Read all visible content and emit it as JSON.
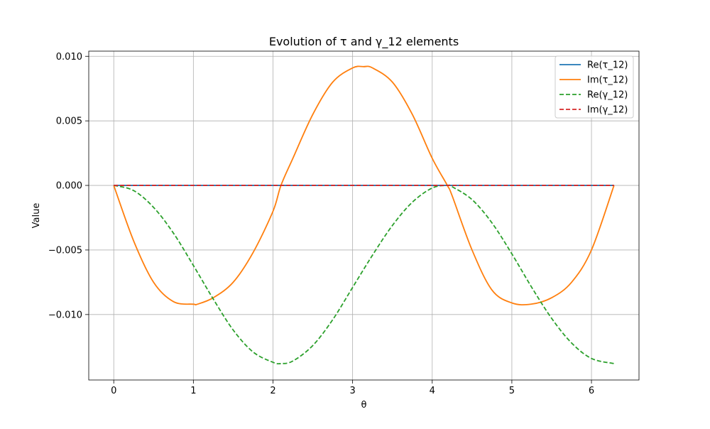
{
  "chart_data": {
    "type": "line",
    "title": "Evolution of τ and γ_12 elements",
    "xlabel": "θ",
    "ylabel": "Value",
    "xlim": [
      -0.314,
      6.597
    ],
    "ylim": [
      -0.01507,
      0.0104
    ],
    "grid": true,
    "legend_position": "top-right",
    "xticks": [
      0,
      1,
      2,
      3,
      4,
      5,
      6
    ],
    "xtick_labels": [
      "0",
      "1",
      "2",
      "3",
      "4",
      "5",
      "6"
    ],
    "yticks": [
      -0.01,
      -0.005,
      0,
      0.005,
      0.01
    ],
    "ytick_labels": [
      "−0.010",
      "−0.005",
      "0.000",
      "0.005",
      "0.010"
    ],
    "series": [
      {
        "name": "Re(τ_12)",
        "color": "#1f77b4",
        "style": "solid",
        "x": [
          0,
          6.283
        ],
        "values": [
          0,
          0
        ]
      },
      {
        "name": "Im(τ_12)",
        "color": "#ff7f0e",
        "style": "solid",
        "x": [
          0,
          0.25,
          0.5,
          0.75,
          1.0,
          1.05,
          1.25,
          1.5,
          1.75,
          2.0,
          2.1,
          2.25,
          2.5,
          2.75,
          3.0,
          3.14,
          3.25,
          3.5,
          3.75,
          4.0,
          4.19,
          4.25,
          4.5,
          4.75,
          5.0,
          5.24,
          5.5,
          5.75,
          6.0,
          6.283
        ],
        "values": [
          0,
          -0.0043,
          -0.0075,
          -0.009,
          -0.0092,
          -0.0092,
          -0.0087,
          -0.0075,
          -0.0052,
          -0.002,
          0.0,
          0.0021,
          0.0055,
          0.008,
          0.0091,
          0.0092,
          0.0091,
          0.008,
          0.0055,
          0.0021,
          0.0,
          -0.0008,
          -0.005,
          -0.0081,
          -0.0091,
          -0.0092,
          -0.0087,
          -0.0075,
          -0.005,
          0.0
        ]
      },
      {
        "name": "Re(γ_12)",
        "color": "#2ca02c",
        "style": "dashed",
        "x": [
          0,
          0.25,
          0.5,
          0.75,
          1.0,
          1.25,
          1.5,
          1.75,
          2.0,
          2.1,
          2.25,
          2.5,
          2.75,
          3.0,
          3.25,
          3.5,
          3.75,
          4.0,
          4.19,
          4.25,
          4.5,
          4.75,
          5.0,
          5.25,
          5.5,
          5.75,
          6.0,
          6.283
        ],
        "values": [
          0,
          -0.0004,
          -0.0017,
          -0.0037,
          -0.0062,
          -0.0088,
          -0.0112,
          -0.0129,
          -0.0137,
          -0.0138,
          -0.0136,
          -0.0124,
          -0.0104,
          -0.0079,
          -0.0054,
          -0.0031,
          -0.0013,
          -0.0002,
          0.0,
          -0.0001,
          -0.0011,
          -0.0029,
          -0.0053,
          -0.0079,
          -0.0103,
          -0.0122,
          -0.0134,
          -0.0138
        ]
      },
      {
        "name": "Im(γ_12)",
        "color": "#d62728",
        "style": "dashed",
        "x": [
          0,
          6.283
        ],
        "values": [
          0,
          0
        ]
      }
    ]
  }
}
